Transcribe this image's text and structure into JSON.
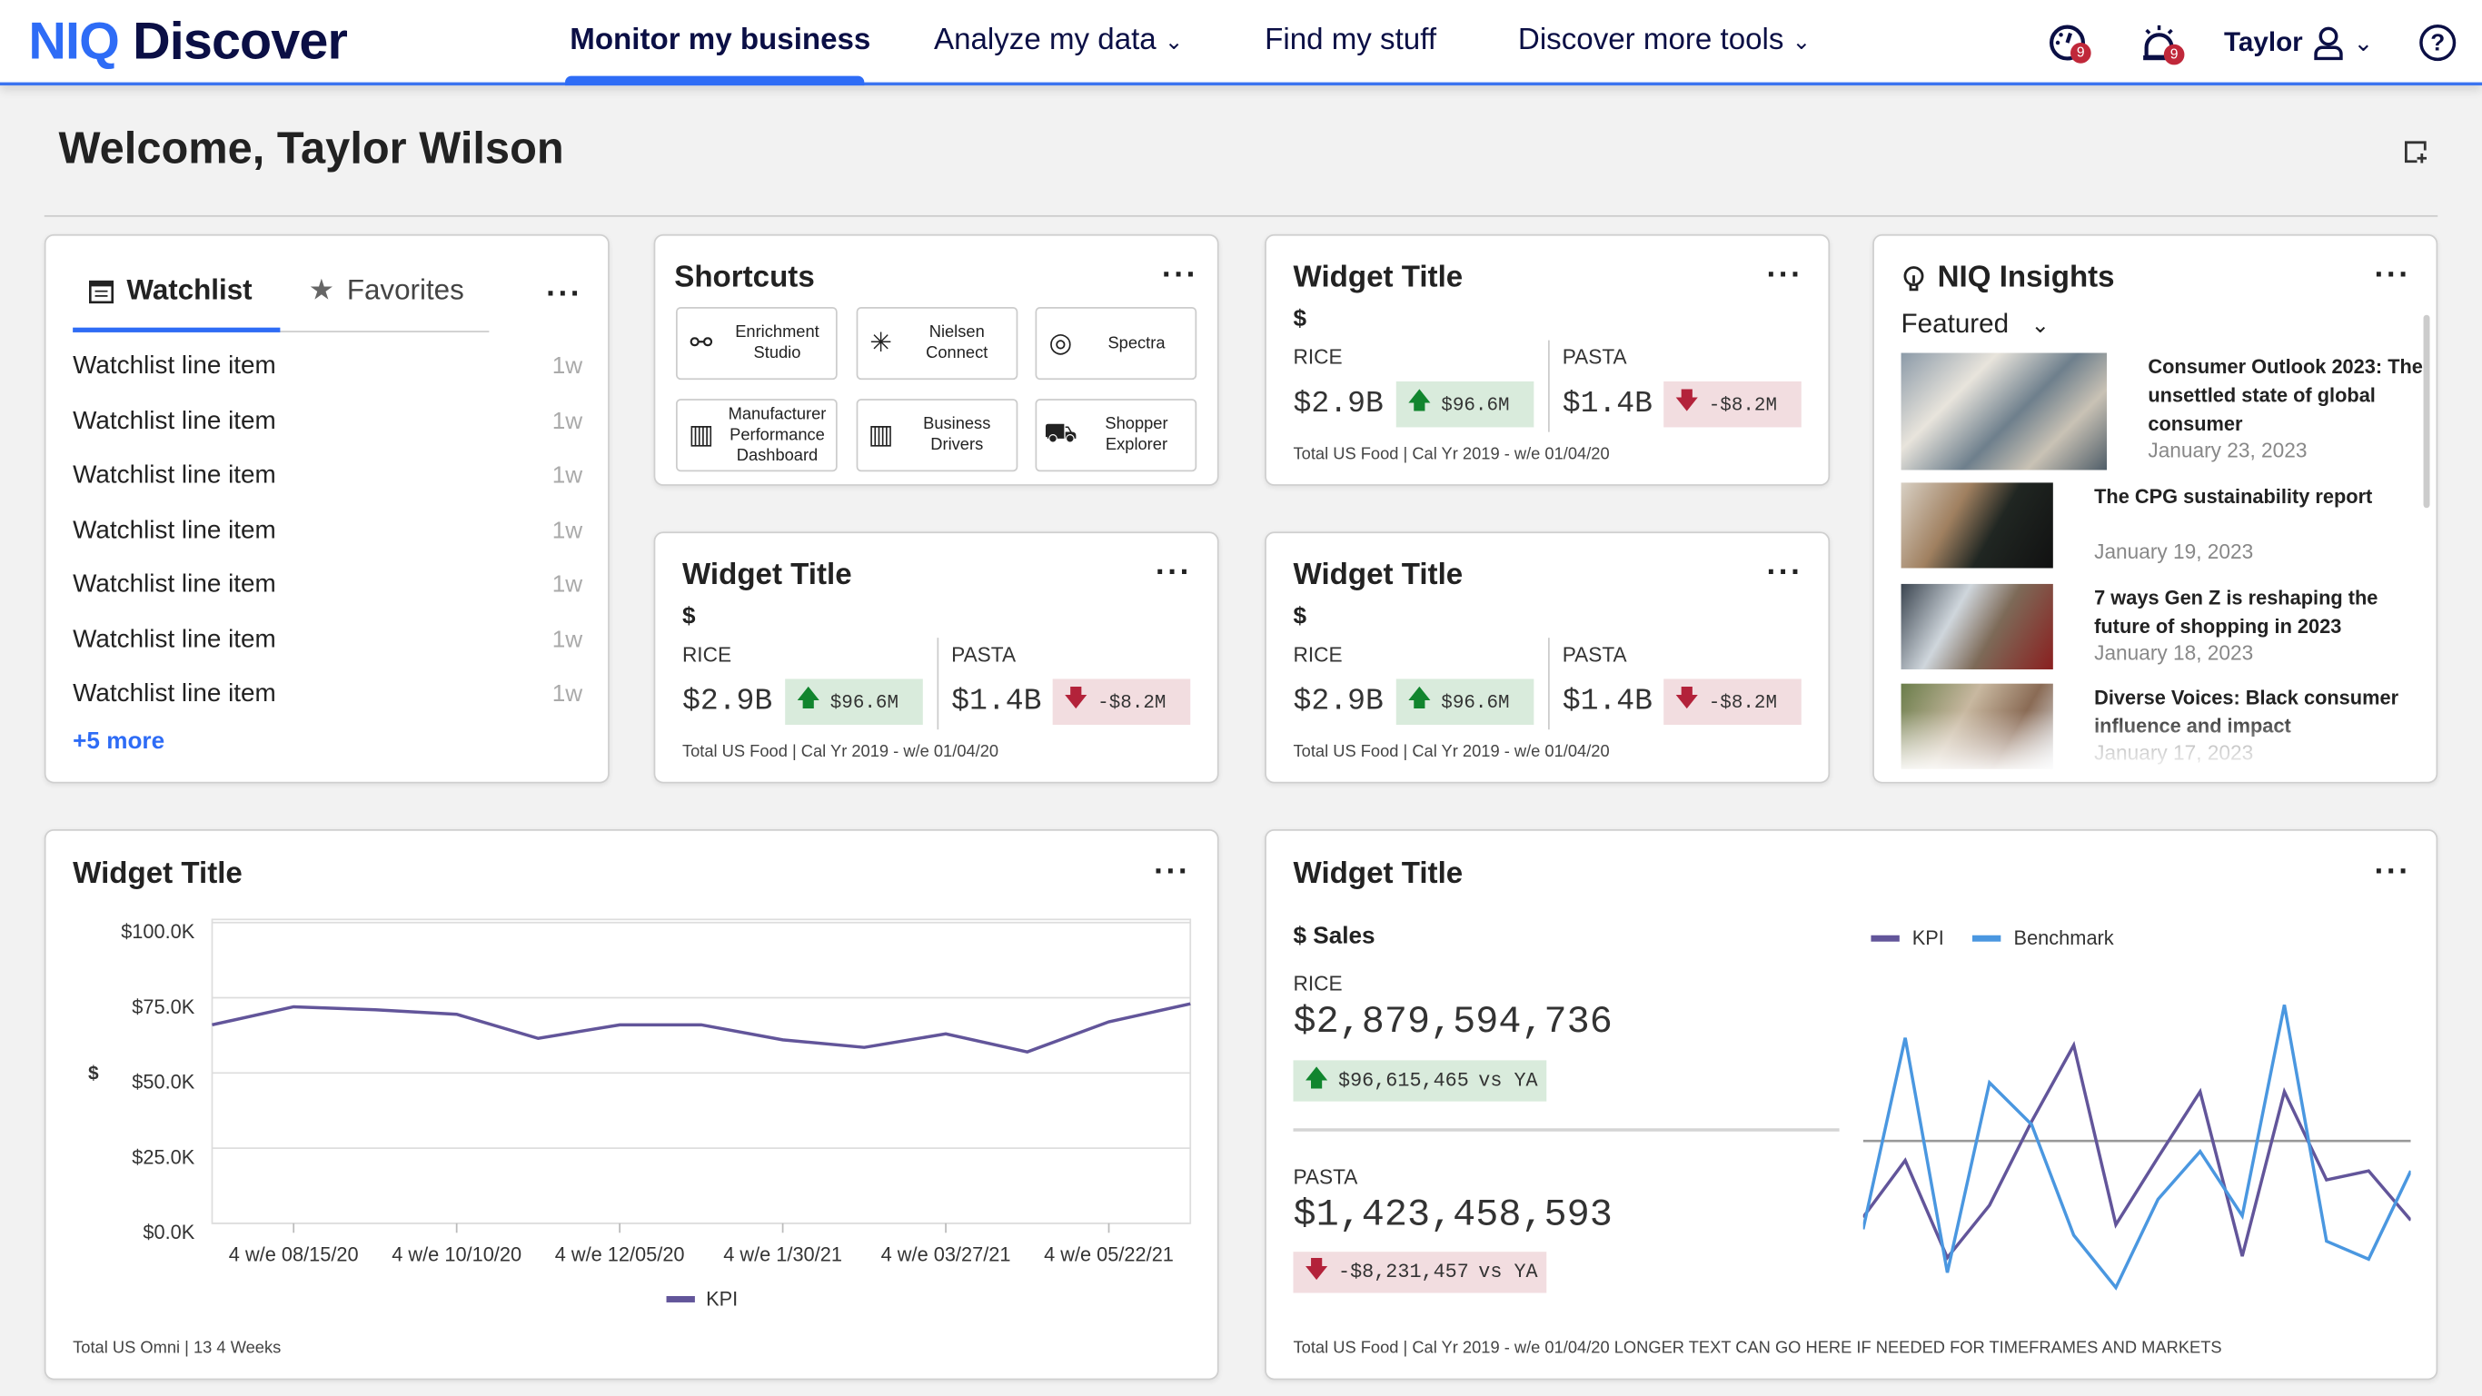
{
  "header": {
    "logo_mark": "NIQ",
    "logo_text": "Discover",
    "nav": [
      {
        "label": "Monitor my business",
        "active": true
      },
      {
        "label": "Analyze my data",
        "dropdown": true
      },
      {
        "label": "Find my stuff"
      },
      {
        "label": "Discover more tools",
        "dropdown": true
      }
    ],
    "dashboard_badge": "9",
    "alerts_badge": "9",
    "user": "Taylor",
    "icons": [
      "dashboard-gauge-icon",
      "alarm-bell-icon",
      "user-icon",
      "chevron-down-icon",
      "help-icon"
    ]
  },
  "page": {
    "welcome": "Welcome, Taylor Wilson",
    "add_widget_icon": "add-widget-icon"
  },
  "watchlist": {
    "tab_watchlist": "Watchlist",
    "tab_favorites": "Favorites",
    "items": [
      {
        "label": "Watchlist line item",
        "age": "1w"
      },
      {
        "label": "Watchlist line item",
        "age": "1w"
      },
      {
        "label": "Watchlist line item",
        "age": "1w"
      },
      {
        "label": "Watchlist line item",
        "age": "1w"
      },
      {
        "label": "Watchlist line item",
        "age": "1w"
      },
      {
        "label": "Watchlist line item",
        "age": "1w"
      },
      {
        "label": "Watchlist line item",
        "age": "1w"
      }
    ],
    "more": "+5 more"
  },
  "shortcuts": {
    "title": "Shortcuts",
    "items": [
      {
        "label": "Enrichment Studio",
        "icon": "enrichment-icon",
        "glyph": "⚯"
      },
      {
        "label": "Nielsen Connect",
        "icon": "asterisk-icon",
        "glyph": "✳"
      },
      {
        "label": "Spectra",
        "icon": "target-icon",
        "glyph": "◎"
      },
      {
        "label": "Manufacturer Performance Dashboard",
        "icon": "factory-icon",
        "glyph": "▥"
      },
      {
        "label": "Business Drivers",
        "icon": "factory-icon",
        "glyph": "▥"
      },
      {
        "label": "Shopper Explorer",
        "icon": "shopping-cart-icon",
        "glyph": "⛟"
      }
    ]
  },
  "kpi_widgets": [
    {
      "title": "Widget Title",
      "unit": "$",
      "a_label": "RICE",
      "a_value": "$2.9B",
      "a_change": "$96.6M",
      "b_label": "PASTA",
      "b_value": "$1.4B",
      "b_change": "-$8.2M",
      "footer": "Total US Food | Cal Yr 2019 - w/e 01/04/20"
    },
    {
      "title": "Widget Title",
      "unit": "$",
      "a_label": "RICE",
      "a_value": "$2.9B",
      "a_change": "$96.6M",
      "b_label": "PASTA",
      "b_value": "$1.4B",
      "b_change": "-$8.2M",
      "footer": "Total US Food | Cal Yr 2019 - w/e 01/04/20"
    },
    {
      "title": "Widget Title",
      "unit": "$",
      "a_label": "RICE",
      "a_value": "$2.9B",
      "a_change": "$96.6M",
      "b_label": "PASTA",
      "b_value": "$1.4B",
      "b_change": "-$8.2M",
      "footer": "Total US Food | Cal Yr 2019 - w/e 01/04/20"
    }
  ],
  "insights": {
    "title": "NIQ Insights",
    "filter": "Featured",
    "items": [
      {
        "title": "Consumer Outlook 2023: The unsettled state of global consumer",
        "date": "January 23, 2023"
      },
      {
        "title": "The CPG sustainability report",
        "date": "January 19, 2023"
      },
      {
        "title": "7 ways Gen Z is reshaping the future of shopping in 2023",
        "date": "January 18, 2023"
      },
      {
        "title": "Diverse Voices: Black consumer influence and impact",
        "date": "January 17, 2023"
      }
    ]
  },
  "line_widget": {
    "title": "Widget Title",
    "footer": "Total US Omni | 13 4 Weeks"
  },
  "sales_widget": {
    "title": "Widget Title",
    "metric": "$ Sales",
    "a_label": "RICE",
    "a_value": "$2,879,594,736",
    "a_change": "$96,615,465",
    "a_vs": "vs YA",
    "b_label": "PASTA",
    "b_value": "$1,423,458,593",
    "b_change": "-$8,231,457",
    "b_vs": "vs YA",
    "footer": "Total US Food | Cal Yr 2019 - w/e 01/04/20 LONGER TEXT CAN GO HERE IF NEEDED FOR TIMEFRAMES AND MARKETS"
  },
  "colors": {
    "accent": "#2e6cf6",
    "navy": "#0b0f45",
    "kpi": "#62559a",
    "benchmark": "#4a97e0",
    "up": "#11852e",
    "down": "#b3223a"
  },
  "chart_data": [
    {
      "type": "line",
      "title": "",
      "ylabel": "$",
      "ylim": [
        0,
        100000
      ],
      "y_ticks": [
        "$0.0K",
        "$25.0K",
        "$50.0K",
        "$75.0K",
        "$100.0K"
      ],
      "x_tick_labels": [
        "4 w/e 08/15/20",
        "4 w/e 10/10/20",
        "4 w/e 12/05/20",
        "4 w/e 1/30/21",
        "4 w/e 03/27/21",
        "4 w/e 05/22/21"
      ],
      "series": [
        {
          "name": "KPI",
          "values": [
            66000,
            72000,
            71000,
            69500,
            61500,
            66000,
            66000,
            61000,
            58500,
            63000,
            57000,
            67000,
            73000
          ]
        }
      ],
      "grid": true,
      "legend": "bottom"
    },
    {
      "type": "line",
      "title": "",
      "ylim": [
        -50,
        50
      ],
      "reference_line": 0,
      "series": [
        {
          "name": "KPI",
          "values": [
            -25.5,
            -6.5,
            -39,
            -21.5,
            6.5,
            32,
            -28,
            -5.5,
            16.5,
            -38.5,
            16.5,
            -13,
            -10,
            -26.5
          ]
        },
        {
          "name": "Benchmark",
          "values": [
            -29.5,
            34.5,
            -44,
            19.5,
            5.5,
            -31.5,
            -49,
            -19.5,
            -3.5,
            -25,
            45.5,
            -33.5,
            -39.5,
            -10
          ]
        }
      ],
      "legend": "top"
    }
  ]
}
